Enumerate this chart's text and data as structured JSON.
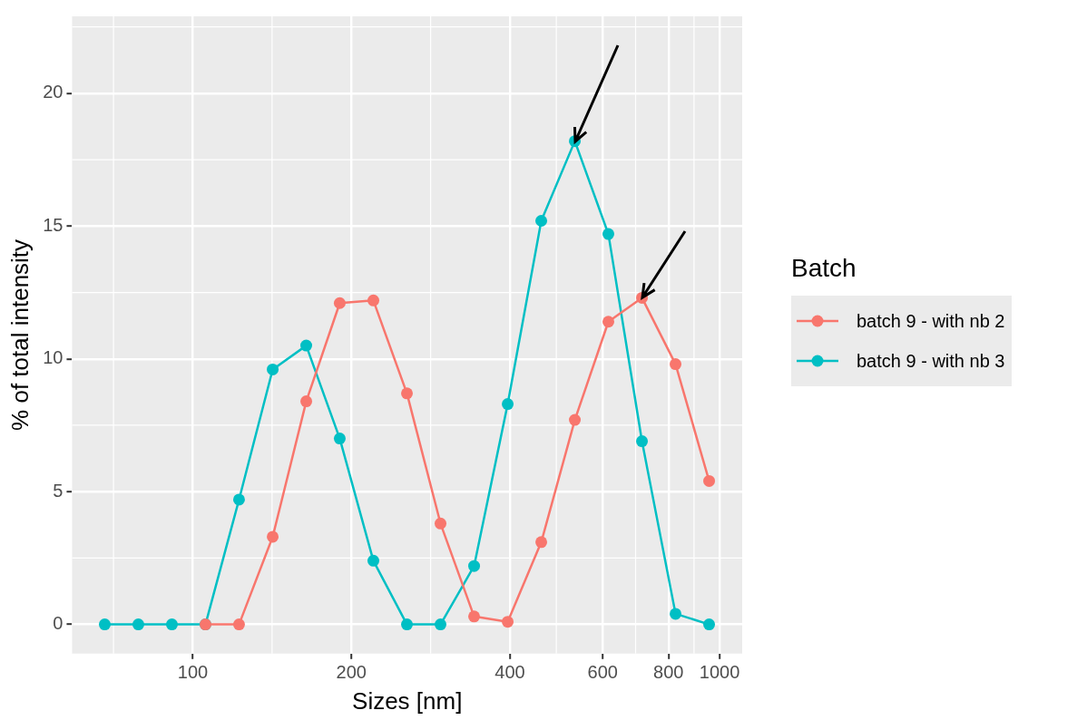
{
  "chart_data": {
    "type": "line",
    "xlabel": "Sizes [nm]",
    "ylabel": "% of total intensity",
    "legend_title": "Batch",
    "log": "x",
    "x": [
      68.06,
      78.82,
      91.28,
      105.7,
      122.4,
      141.8,
      164.2,
      190.1,
      220.2,
      255.0,
      295.3,
      342.0,
      396.1,
      458.7,
      531.2,
      615.1,
      712.4,
      825.0,
      955.4
    ],
    "series": [
      {
        "name": "batch 9 - with nb 2",
        "color": "#f8766d",
        "values": [
          null,
          null,
          null,
          0,
          0,
          3.3,
          8.4,
          12.1,
          12.2,
          8.7,
          3.8,
          0.3,
          0.1,
          3.1,
          7.7,
          11.4,
          12.3,
          9.8,
          5.4
        ]
      },
      {
        "name": "batch 9 - with nb 3",
        "color": "#00bfc4",
        "values": [
          0,
          0,
          0,
          0,
          4.7,
          9.6,
          10.5,
          7.0,
          2.4,
          0,
          0,
          2.2,
          8.3,
          15.2,
          18.2,
          14.7,
          6.9,
          0.4,
          0
        ]
      }
    ],
    "xlim": [
      59,
      1104
    ],
    "xticks": [
      100,
      200,
      400,
      600,
      800,
      1000
    ],
    "ylim": [
      -1.1,
      22.9
    ],
    "yticks": [
      0,
      5,
      10,
      15,
      20
    ],
    "grid": true,
    "legend": "right",
    "marker": "circle",
    "line_style": "solid"
  }
}
